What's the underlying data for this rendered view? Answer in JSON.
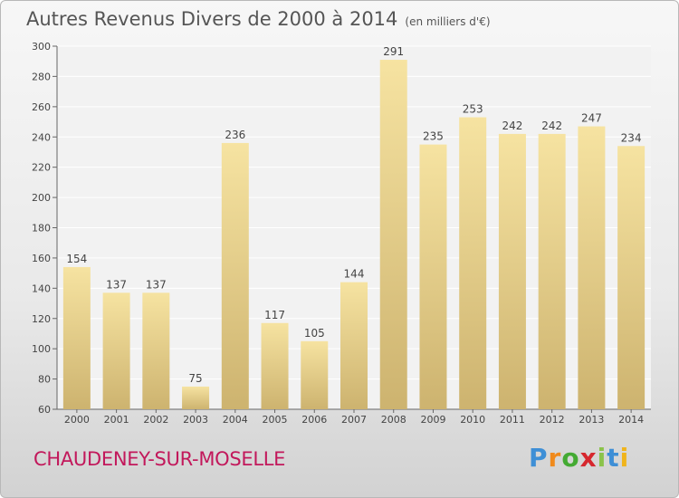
{
  "header": {
    "title": "Autres Revenus Divers de 2000 à 2014",
    "subtitle": "(en milliers d'€)"
  },
  "footer": {
    "town": "CHAUDENEY-SUR-MOSELLE",
    "brand": "Proxiti"
  },
  "colors": {
    "bar_light": "#f6e3a1",
    "bar_dark": "#cdb36f",
    "title": "#555555",
    "town": "#c2185b"
  },
  "chart_data": {
    "type": "bar",
    "title": "Autres Revenus Divers de 2000 à 2014",
    "subtitle": "(en milliers d'€)",
    "categories": [
      "2000",
      "2001",
      "2002",
      "2003",
      "2004",
      "2005",
      "2006",
      "2007",
      "2008",
      "2009",
      "2010",
      "2011",
      "2012",
      "2013",
      "2014"
    ],
    "values": [
      154,
      137,
      137,
      75,
      236,
      117,
      105,
      144,
      291,
      235,
      253,
      242,
      242,
      247,
      234
    ],
    "ylim": [
      60,
      300
    ],
    "yticks": [
      60,
      80,
      100,
      120,
      140,
      160,
      180,
      200,
      220,
      240,
      260,
      280,
      300
    ],
    "grid": true,
    "xlabel": "",
    "ylabel": ""
  }
}
